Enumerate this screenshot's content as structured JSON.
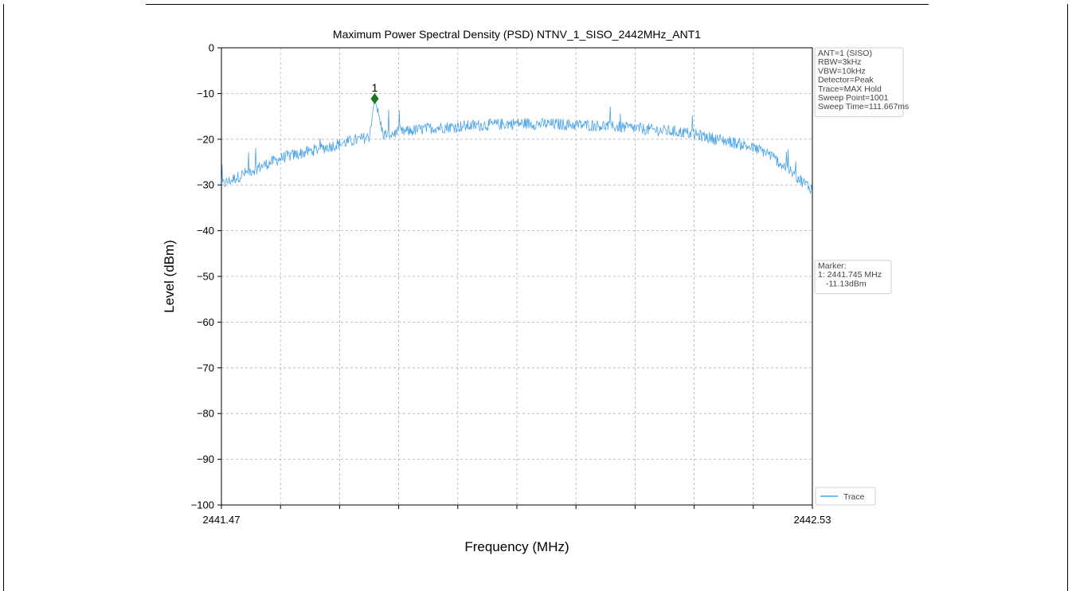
{
  "chart_data": {
    "type": "line",
    "title": "Maximum Power Spectral Density (PSD) NTNV_1_SISO_2442MHz_ANT1",
    "xlabel": "Frequency (MHz)",
    "ylabel": "Level (dBm)",
    "xlim": [
      2441.47,
      2442.53
    ],
    "ylim": [
      -100,
      0
    ],
    "x_tick_labels": [
      "2441.47",
      "2442.53"
    ],
    "y_ticks": [
      0,
      -10,
      -20,
      -30,
      -40,
      -50,
      -60,
      -70,
      -80,
      -90,
      -100
    ],
    "y_tick_labels": [
      "0",
      "−10",
      "−20",
      "−30",
      "−40",
      "−50",
      "−60",
      "−70",
      "−80",
      "−90",
      "−100"
    ],
    "grid": true,
    "legend": {
      "placement": "bottom-right",
      "entries": [
        "Trace"
      ]
    },
    "series": [
      {
        "name": "Trace",
        "color": "#4aa3e8",
        "points": 1001,
        "profile": {
          "x": [
            2441.47,
            2441.52,
            2441.58,
            2441.65,
            2441.7,
            2441.735,
            2441.745,
            2441.76,
            2441.85,
            2442.0,
            2442.15,
            2442.3,
            2442.4,
            2442.45,
            2442.5,
            2442.53
          ],
          "y": [
            -30,
            -27,
            -24,
            -22,
            -20.5,
            -19.5,
            -11.13,
            -19,
            -17.5,
            -16.5,
            -17,
            -18.5,
            -21,
            -23,
            -28,
            -31
          ]
        }
      }
    ],
    "marker": {
      "id": "1",
      "x": 2441.745,
      "y": -11.13,
      "color": "#1a7a1a"
    },
    "info_box": [
      "ANT=1 (SISO)",
      "RBW=3kHz",
      "VBW=10kHz",
      "Detector=Peak",
      "Trace=MAX Hold",
      "Sweep Point=1001",
      "Sweep Time=111.667ms"
    ],
    "marker_box": [
      "Marker:",
      "1: 2441.745 MHz",
      "-11.13dBm"
    ]
  }
}
